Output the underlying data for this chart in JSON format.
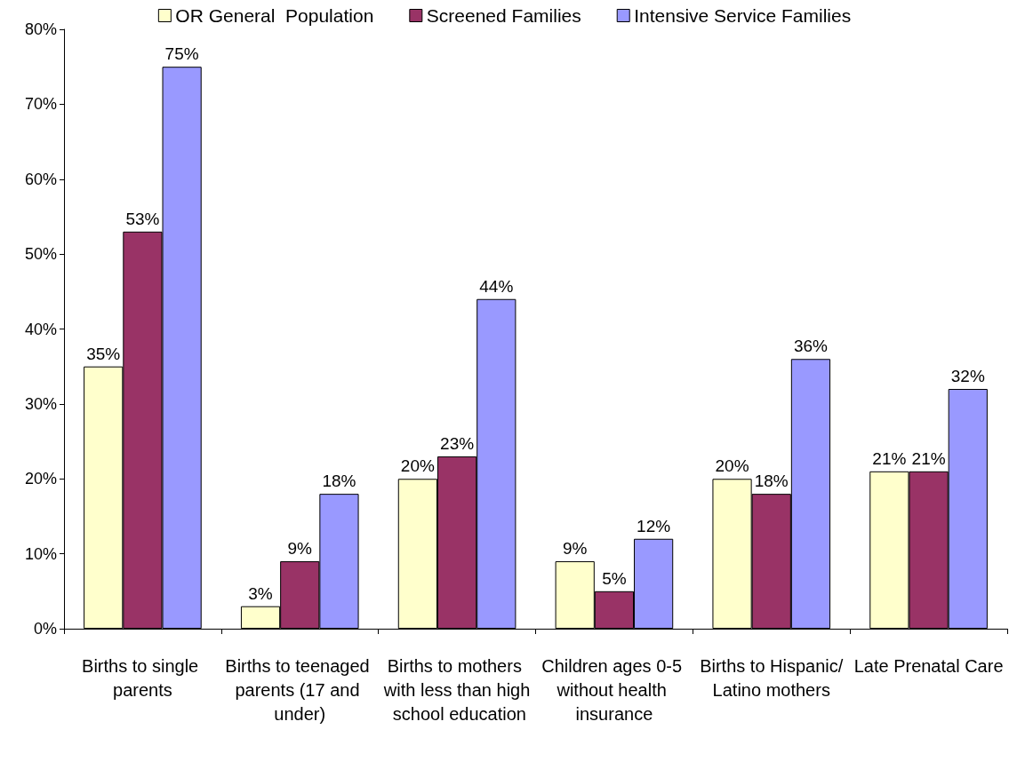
{
  "chart_data": {
    "type": "bar",
    "categories": [
      "Births to single parents",
      "Births to teenaged parents (17 and under)",
      "Births to mothers with less than high school education",
      "Children ages 0-5 without health insurance",
      "Births to Hispanic/Latino mothers",
      "Late Prenatal Care"
    ],
    "series": [
      {
        "name": "OR General  Population",
        "color": "#ffffcc",
        "values": [
          35,
          3,
          20,
          9,
          20,
          21
        ],
        "value_labels": [
          "35%",
          "3%",
          "20%",
          "9%",
          "20%",
          "21%"
        ]
      },
      {
        "name": "Screened Families",
        "color": "#993366",
        "values": [
          53,
          9,
          23,
          5,
          18,
          21
        ],
        "value_labels": [
          "53%",
          "9%",
          "23%",
          "5%",
          "18%",
          "21%"
        ]
      },
      {
        "name": "Intensive Service Families",
        "color": "#9999ff",
        "values": [
          75,
          18,
          44,
          12,
          36,
          32
        ],
        "value_labels": [
          "75%",
          "18%",
          "44%",
          "12%",
          "36%",
          "32%"
        ]
      }
    ],
    "ylim": [
      0,
      80
    ],
    "yticks": [
      {
        "value": 0,
        "label": "0%"
      },
      {
        "value": 10,
        "label": "10%"
      },
      {
        "value": 20,
        "label": "20%"
      },
      {
        "value": 30,
        "label": "30%"
      },
      {
        "value": 40,
        "label": "40%"
      },
      {
        "value": 50,
        "label": "50%"
      },
      {
        "value": 60,
        "label": "60%"
      },
      {
        "value": 70,
        "label": "70%"
      },
      {
        "value": 80,
        "label": "80%"
      }
    ],
    "grid": false,
    "legend": "top"
  }
}
